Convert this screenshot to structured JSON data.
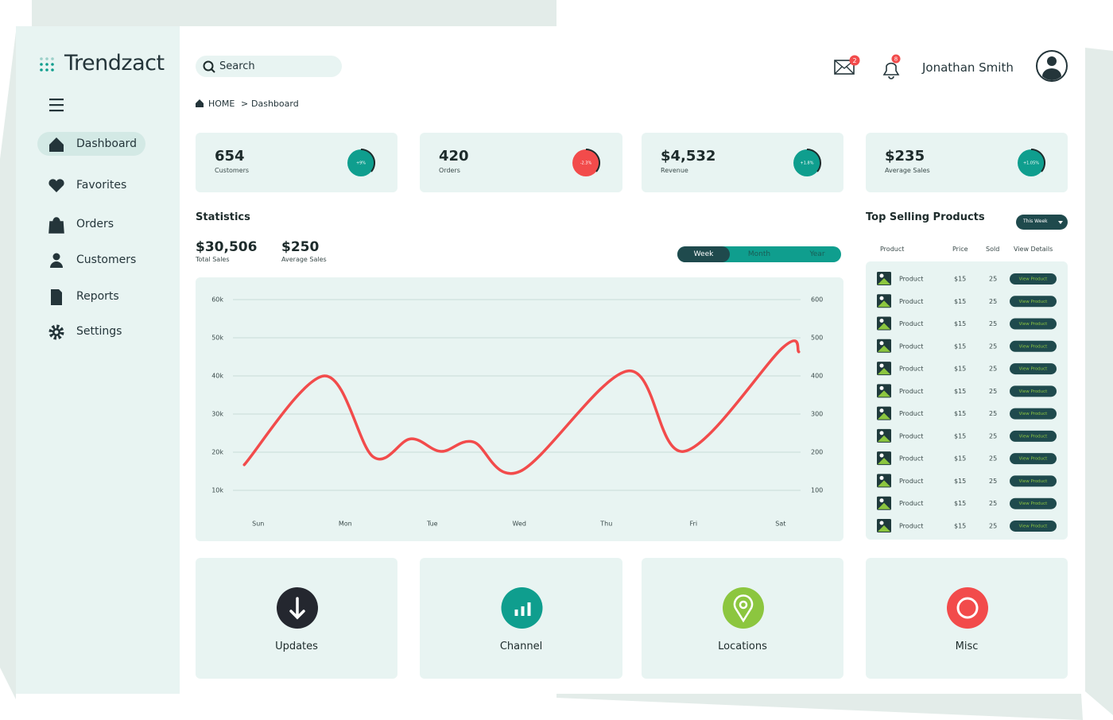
{
  "logo": "Trendzact",
  "nav": [
    "Dashboard",
    "Favorites",
    "Orders",
    "Customers",
    "Reports",
    "Settings"
  ],
  "search": "Search",
  "header": {
    "mail_badge": "2",
    "bell_badge": "8",
    "user": "Jonathan Smith"
  },
  "breadcrumb": [
    "HOME",
    ">",
    "Dashboard"
  ],
  "stats": [
    {
      "value": "654",
      "label": "Customers",
      "change": "+9%"
    },
    {
      "value": "420",
      "label": "Orders",
      "change": "-2.3%"
    },
    {
      "value": "$4,532",
      "label": "Revenue",
      "change": "+1.8%"
    },
    {
      "value": "$235",
      "label": "Average Sales",
      "change": "+1.05%"
    }
  ],
  "statistics": {
    "title": "Statistics",
    "summary": [
      {
        "value": "$30,506",
        "label": "Total Sales"
      },
      {
        "value": "$250",
        "label": "Average Sales"
      }
    ],
    "periods": [
      "Week",
      "Month",
      "Year"
    ],
    "chart": {
      "type": "line",
      "x": [
        -0.16,
        0.76,
        1.32,
        1.75,
        2.1,
        2.47,
        3.01,
        4.25,
        4.89,
        6.03,
        6.21
      ],
      "values": [
        16700,
        40000,
        18800,
        23500,
        20200,
        22700,
        15000,
        41300,
        20200,
        47500,
        46300
      ],
      "color": "#f24b4b",
      "xlim": [
        -0.29,
        6.23
      ],
      "xticks": [
        {
          "value": 0,
          "label": "Sun"
        },
        {
          "value": 1,
          "label": "Mon"
        },
        {
          "value": 2,
          "label": "Tue"
        },
        {
          "value": 3,
          "label": "Wed"
        },
        {
          "value": 4,
          "label": "Thu"
        },
        {
          "value": 5,
          "label": "Fri"
        },
        {
          "value": 6,
          "label": "Sat"
        }
      ],
      "ylim": [
        10000,
        60000
      ],
      "yticks": [
        {
          "value": 10000,
          "label": "10k"
        },
        {
          "value": 20000,
          "label": "20k"
        },
        {
          "value": 30000,
          "label": "30k"
        },
        {
          "value": 40000,
          "label": "40k"
        },
        {
          "value": 50000,
          "label": "50k"
        },
        {
          "value": 60000,
          "label": "60k"
        }
      ],
      "y2lim": [
        100,
        600
      ],
      "y2ticks": [
        100,
        200,
        300,
        400,
        500,
        600
      ],
      "grid": true
    }
  },
  "top_products": {
    "title": "Top Selling Products",
    "filter": "This Week",
    "columns": [
      "Product",
      "Price",
      "Sold",
      "View Details"
    ],
    "rows": [
      [
        "Product",
        "$15",
        "25",
        "View Product"
      ],
      [
        "Product",
        "$15",
        "25",
        "View Product"
      ],
      [
        "Product",
        "$15",
        "25",
        "View Product"
      ],
      [
        "Product",
        "$15",
        "25",
        "View Product"
      ],
      [
        "Product",
        "$15",
        "25",
        "View Product"
      ],
      [
        "Product",
        "$15",
        "25",
        "View Product"
      ],
      [
        "Product",
        "$15",
        "25",
        "View Product"
      ],
      [
        "Product",
        "$15",
        "25",
        "View Product"
      ],
      [
        "Product",
        "$15",
        "25",
        "View Product"
      ],
      [
        "Product",
        "$15",
        "25",
        "View Product"
      ],
      [
        "Product",
        "$15",
        "25",
        "View Product"
      ],
      [
        "Product",
        "$15",
        "25",
        "View Product"
      ]
    ]
  },
  "tiles": [
    "Updates",
    "Channel",
    "Locations",
    "Misc"
  ]
}
